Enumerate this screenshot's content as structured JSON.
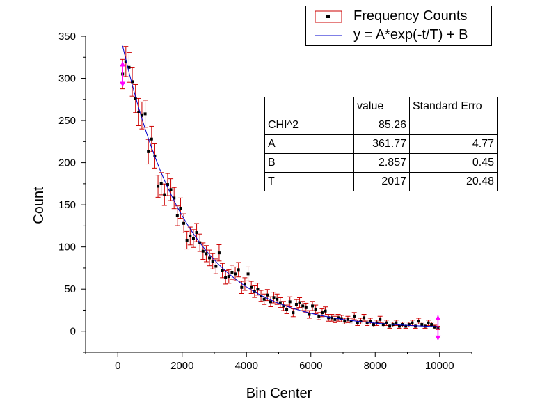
{
  "chart_data": {
    "type": "scatter",
    "xlabel": "Bin Center",
    "ylabel": "Count",
    "xlim": [
      -1000,
      11000
    ],
    "ylim": [
      -25,
      350
    ],
    "xticks": [
      0,
      2000,
      4000,
      6000,
      8000,
      10000
    ],
    "yticks": [
      0,
      50,
      100,
      150,
      200,
      250,
      300,
      350
    ],
    "grid": false,
    "legend_position": "top-right",
    "series": [
      {
        "name": "Frequency Counts",
        "style": "points-with-error-bars",
        "color": "#000000",
        "errorbar_color": "#cc0000",
        "x": [
          150,
          250,
          350,
          450,
          550,
          650,
          750,
          850,
          950,
          1050,
          1150,
          1250,
          1350,
          1450,
          1550,
          1650,
          1750,
          1850,
          1950,
          2050,
          2150,
          2250,
          2350,
          2450,
          2550,
          2650,
          2750,
          2850,
          2950,
          3050,
          3150,
          3250,
          3350,
          3450,
          3550,
          3650,
          3750,
          3850,
          3950,
          4050,
          4150,
          4250,
          4350,
          4450,
          4550,
          4650,
          4750,
          4850,
          4950,
          5050,
          5150,
          5250,
          5350,
          5450,
          5550,
          5650,
          5750,
          5850,
          5950,
          6050,
          6150,
          6250,
          6350,
          6450,
          6550,
          6650,
          6750,
          6850,
          6950,
          7050,
          7150,
          7250,
          7350,
          7450,
          7550,
          7650,
          7750,
          7850,
          7950,
          8050,
          8150,
          8250,
          8350,
          8450,
          8550,
          8650,
          8750,
          8850,
          8950,
          9050,
          9150,
          9250,
          9350,
          9450,
          9550,
          9650,
          9750,
          9850,
          9950
        ],
        "y": [
          305,
          320,
          313,
          296,
          276,
          260,
          256,
          258,
          213,
          228,
          208,
          172,
          175,
          162,
          174,
          168,
          158,
          137,
          146,
          128,
          108,
          113,
          110,
          117,
          105,
          95,
          92,
          87,
          83,
          77,
          93,
          72,
          64,
          65,
          70,
          68,
          73,
          52,
          56,
          68,
          52,
          47,
          50,
          42,
          38,
          43,
          35,
          40,
          38,
          34,
          30,
          26,
          35,
          22,
          32,
          34,
          30,
          28,
          20,
          30,
          26,
          18,
          22,
          24,
          16,
          16,
          14,
          16,
          15,
          12,
          14,
          12,
          18,
          10,
          12,
          16,
          10,
          12,
          8,
          10,
          14,
          8,
          10,
          6,
          8,
          10,
          6,
          8,
          6,
          8,
          10,
          6,
          12,
          8,
          6,
          10,
          8,
          5,
          4
        ]
      },
      {
        "name": "y = A*exp(-t/T) + B",
        "style": "line",
        "color": "#0000cc",
        "function": "A*exp(-t/T)+B",
        "params": {
          "A": 361.77,
          "B": 2.857,
          "T": 2017
        },
        "x_range": [
          150,
          9950
        ]
      }
    ],
    "annotations": [
      {
        "type": "range-marker",
        "color": "#ff00ff",
        "x": 150
      },
      {
        "type": "range-marker",
        "color": "#ff00ff",
        "x": 9950
      }
    ],
    "table": {
      "header": [
        "",
        "value",
        "Standard Erro"
      ],
      "rows": [
        [
          "CHI^2",
          "85.26",
          ""
        ],
        [
          "A",
          "361.77",
          "4.77"
        ],
        [
          "B",
          "2.857",
          "0.45"
        ],
        [
          "T",
          "2017",
          "20.48"
        ]
      ]
    }
  }
}
